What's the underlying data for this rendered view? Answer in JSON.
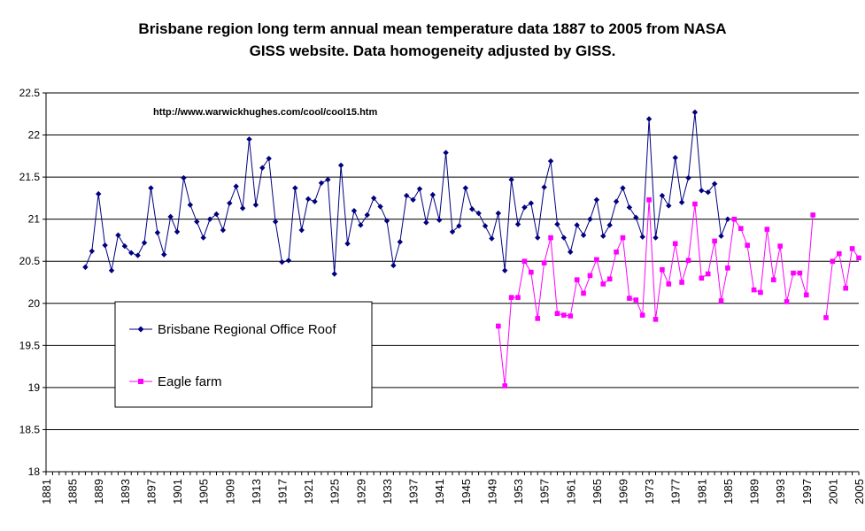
{
  "chart_data": {
    "type": "line",
    "title_lines": [
      "Brisbane region  long term annual mean temperature data 1887 to 2005 from NASA",
      "GISS website.  Data homogeneity adjusted by GISS."
    ],
    "annotation": "http://www.warwickhughes.com/cool/cool15.htm",
    "xlim": [
      1881,
      2005
    ],
    "ylim": [
      18,
      22.5
    ],
    "y_ticks": [
      "18",
      "18.5",
      "19",
      "19.5",
      "20",
      "20.5",
      "21",
      "21.5",
      "22",
      "22.5"
    ],
    "x_ticks": [
      "1881",
      "1885",
      "1889",
      "1893",
      "1897",
      "1901",
      "1905",
      "1909",
      "1913",
      "1917",
      "1921",
      "1925",
      "1929",
      "1933",
      "1937",
      "1941",
      "1945",
      "1949",
      "1953",
      "1957",
      "1961",
      "1965",
      "1969",
      "1973",
      "1977",
      "1981",
      "1985",
      "1989",
      "1993",
      "1997",
      "2001",
      "2005"
    ],
    "grid": "horizontal",
    "legend_position": "left-middle",
    "series": [
      {
        "name": "Brisbane Regional Office Roof",
        "color": "#000080",
        "marker": "diamond",
        "start_year": 1887,
        "values": [
          20.43,
          20.62,
          21.3,
          20.69,
          20.39,
          20.81,
          20.68,
          20.6,
          20.57,
          20.72,
          21.37,
          20.84,
          20.58,
          21.03,
          20.85,
          21.49,
          21.17,
          20.97,
          20.78,
          21.0,
          21.06,
          20.87,
          21.19,
          21.39,
          21.13,
          21.95,
          21.17,
          21.61,
          21.72,
          20.97,
          20.49,
          20.51,
          21.37,
          20.87,
          21.24,
          21.21,
          21.43,
          21.47,
          20.35,
          21.64,
          20.71,
          21.1,
          20.93,
          21.05,
          21.25,
          21.15,
          20.98,
          20.45,
          20.73,
          21.28,
          21.23,
          21.36,
          20.96,
          21.29,
          20.99,
          21.79,
          20.85,
          20.92,
          21.37,
          21.12,
          21.07,
          20.92,
          20.77,
          21.07,
          20.39,
          21.47,
          20.94,
          21.14,
          21.19,
          20.78,
          21.38,
          21.69,
          20.94,
          20.78,
          20.61,
          20.93,
          20.81,
          21.0,
          21.23,
          20.8,
          20.93,
          21.21,
          21.37,
          21.14,
          21.02,
          20.79,
          22.19,
          20.78,
          21.28,
          21.16,
          21.73,
          21.2,
          21.49,
          22.27,
          21.34,
          21.32,
          21.42,
          20.8,
          21.0
        ]
      },
      {
        "name": "Eagle farm",
        "color": "#ff00ff",
        "marker": "square",
        "start_year": 1950,
        "values": [
          19.73,
          19.02,
          20.07,
          20.07,
          20.5,
          20.37,
          19.82,
          20.48,
          20.78,
          19.88,
          19.86,
          19.85,
          20.28,
          20.12,
          20.33,
          20.52,
          20.23,
          20.29,
          20.61,
          20.78,
          20.06,
          20.04,
          19.86,
          21.23,
          19.81,
          20.4,
          20.23,
          20.71,
          20.25,
          20.51,
          21.18,
          20.3,
          20.35,
          20.74,
          20.03,
          20.42,
          21.0,
          20.89,
          20.69,
          20.16,
          20.13,
          20.88,
          20.28,
          20.68,
          20.02,
          20.36,
          20.36,
          20.1,
          21.05,
          null,
          19.83,
          20.5,
          20.59,
          20.18,
          20.65,
          20.54
        ]
      }
    ]
  }
}
